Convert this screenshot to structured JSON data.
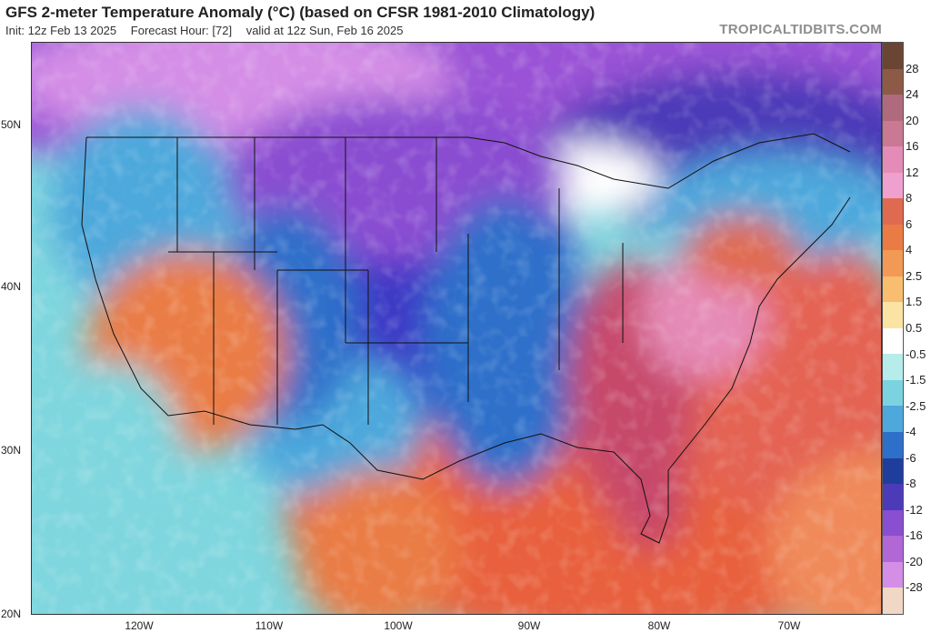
{
  "header": {
    "title": "GFS 2-meter Temperature Anomaly (°C) (based on CFSR 1981-2010 Climatology)",
    "init": "Init: 12z Feb 13 2025",
    "forecast_hour": "Forecast Hour: [72]",
    "valid": "valid at 12z Sun, Feb 16 2025"
  },
  "brand": "TROPICALTIDBITS.COM",
  "axes": {
    "lat_labels": [
      "50N",
      "40N",
      "30N",
      "20N"
    ],
    "lon_labels": [
      "120W",
      "110W",
      "100W",
      "90W",
      "80W",
      "70W"
    ]
  },
  "colorbar": {
    "labels": [
      "28",
      "24",
      "20",
      "16",
      "12",
      "8",
      "6",
      "4",
      "2.5",
      "1.5",
      "0.5",
      "-0.5",
      "-1.5",
      "-2.5",
      "-4",
      "-6",
      "-8",
      "-12",
      "-16",
      "-20",
      "-28"
    ],
    "colors": [
      "#6b4534",
      "#8d5a48",
      "#b06a7e",
      "#c97993",
      "#e58bb7",
      "#f0a0cf",
      "#e06a50",
      "#ea7b45",
      "#f29a55",
      "#f8bd6e",
      "#fbe3a3",
      "#ffffff",
      "#b6ece9",
      "#7cd3e0",
      "#4ea8dc",
      "#2e6fca",
      "#1f3d9b",
      "#4c3bb8",
      "#8a4ed1",
      "#b267d6",
      "#d48ee6",
      "#f0d7c6"
    ]
  },
  "regions": {
    "cold_core_color": "#3c38c6",
    "polar_color": "#9a52d6",
    "warm_southeast_color": "#c74a6a",
    "gulf_color": "#e8603e",
    "pacific_color": "#7fd6de"
  }
}
